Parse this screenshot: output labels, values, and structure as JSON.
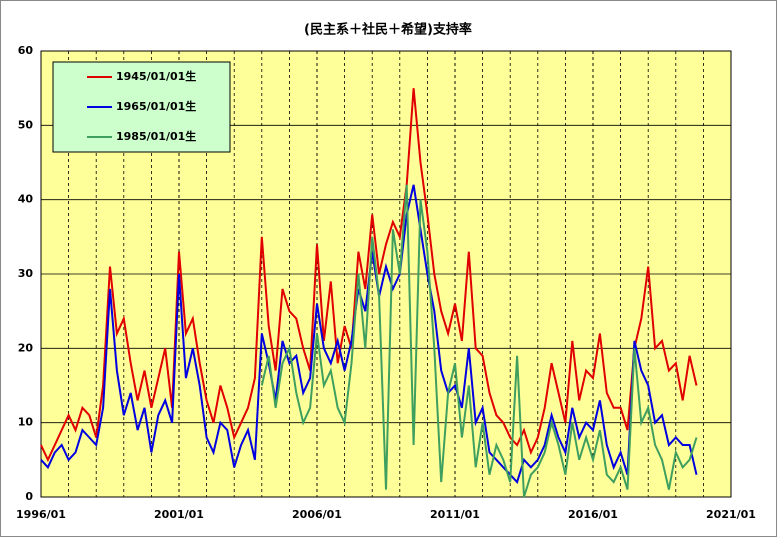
{
  "chart_data": {
    "type": "line",
    "title": "(民主系＋社民＋希望)支持率",
    "x": [
      "1996/01",
      "1996/04",
      "1996/07",
      "1996/10",
      "1997/01",
      "1997/04",
      "1997/07",
      "1997/10",
      "1998/01",
      "1998/04",
      "1998/07",
      "1998/10",
      "1999/01",
      "1999/04",
      "1999/07",
      "1999/10",
      "2000/01",
      "2000/04",
      "2000/07",
      "2000/10",
      "2001/01",
      "2001/04",
      "2001/07",
      "2001/10",
      "2002/01",
      "2002/04",
      "2002/07",
      "2002/10",
      "2003/01",
      "2003/04",
      "2003/07",
      "2003/10",
      "2004/01",
      "2004/04",
      "2004/07",
      "2004/10",
      "2005/01",
      "2005/04",
      "2005/07",
      "2005/10",
      "2006/01",
      "2006/04",
      "2006/07",
      "2006/10",
      "2007/01",
      "2007/04",
      "2007/07",
      "2007/10",
      "2008/01",
      "2008/04",
      "2008/07",
      "2008/10",
      "2009/01",
      "2009/04",
      "2009/07",
      "2009/10",
      "2010/01",
      "2010/04",
      "2010/07",
      "2010/10",
      "2011/01",
      "2011/04",
      "2011/07",
      "2011/10",
      "2012/01",
      "2012/04",
      "2012/07",
      "2012/10",
      "2013/01",
      "2013/04",
      "2013/07",
      "2013/10",
      "2014/01",
      "2014/04",
      "2014/07",
      "2014/10",
      "2015/01",
      "2015/04",
      "2015/07",
      "2015/10",
      "2016/01",
      "2016/04",
      "2016/07",
      "2016/10",
      "2017/01",
      "2017/04",
      "2017/07",
      "2017/10",
      "2018/01",
      "2018/04",
      "2018/07",
      "2018/10",
      "2019/01",
      "2019/04",
      "2019/07",
      "2019/10"
    ],
    "series": [
      {
        "name": "1945/01/01生",
        "color": "#e00000",
        "values": [
          7,
          5,
          7,
          9,
          11,
          9,
          12,
          11,
          8,
          15,
          31,
          22,
          24,
          18,
          13,
          17,
          12,
          16,
          20,
          12,
          33,
          22,
          24,
          18,
          13,
          10,
          15,
          12,
          8,
          10,
          12,
          16,
          35,
          23,
          17,
          28,
          25,
          24,
          20,
          17,
          34,
          21,
          29,
          18,
          23,
          20,
          33,
          28,
          38,
          30,
          34,
          37,
          35,
          42,
          55,
          45,
          38,
          30,
          25,
          22,
          26,
          21,
          33,
          20,
          19,
          14,
          11,
          10,
          8,
          7,
          9,
          6,
          8,
          12,
          18,
          14,
          10,
          21,
          13,
          17,
          16,
          22,
          14,
          12,
          12,
          9,
          20,
          24,
          31,
          20,
          21,
          17,
          18,
          13,
          19,
          15
        ]
      },
      {
        "name": "1965/01/01生",
        "color": "#0000e0",
        "values": [
          5,
          4,
          6,
          7,
          5,
          6,
          9,
          8,
          7,
          12,
          28,
          17,
          11,
          14,
          9,
          12,
          6,
          11,
          13,
          10,
          30,
          16,
          20,
          15,
          8,
          6,
          10,
          9,
          4,
          7,
          9,
          5,
          22,
          18,
          13,
          21,
          18,
          19,
          14,
          16,
          26,
          20,
          18,
          21,
          17,
          21,
          28,
          25,
          33,
          27,
          31,
          28,
          30,
          38,
          42,
          36,
          30,
          25,
          17,
          14,
          15,
          12,
          20,
          10,
          12,
          6,
          5,
          4,
          3,
          2,
          5,
          4,
          5,
          7,
          11,
          8,
          6,
          12,
          8,
          10,
          9,
          13,
          7,
          4,
          6,
          3,
          21,
          17,
          15,
          10,
          11,
          7,
          8,
          7,
          7,
          3
        ]
      },
      {
        "name": "1985/01/01生",
        "color": "#3f9f5f",
        "values": [
          null,
          null,
          null,
          null,
          null,
          null,
          null,
          null,
          null,
          null,
          null,
          null,
          null,
          null,
          null,
          null,
          null,
          null,
          null,
          null,
          null,
          null,
          null,
          null,
          null,
          null,
          null,
          null,
          null,
          null,
          null,
          null,
          15,
          19,
          12,
          18,
          20,
          14,
          10,
          12,
          22,
          15,
          17,
          12,
          10,
          18,
          30,
          20,
          35,
          27,
          1,
          36,
          30,
          42,
          7,
          40,
          33,
          20,
          2,
          14,
          18,
          8,
          15,
          4,
          10,
          3,
          7,
          5,
          2,
          19,
          0,
          3,
          4,
          6,
          10,
          7,
          3,
          10,
          5,
          8,
          5,
          9,
          3,
          2,
          4,
          1,
          20,
          10,
          12,
          7,
          5,
          1,
          6,
          4,
          5,
          8
        ]
      }
    ],
    "xlim": [
      "1996/01",
      "2021/01"
    ],
    "xticks": [
      "1996/01",
      "2001/01",
      "2006/01",
      "2011/01",
      "2016/01",
      "2021/01"
    ],
    "ylim": [
      0,
      60
    ],
    "yticks": [
      0,
      10,
      20,
      30,
      40,
      50,
      60
    ],
    "grid": true
  }
}
